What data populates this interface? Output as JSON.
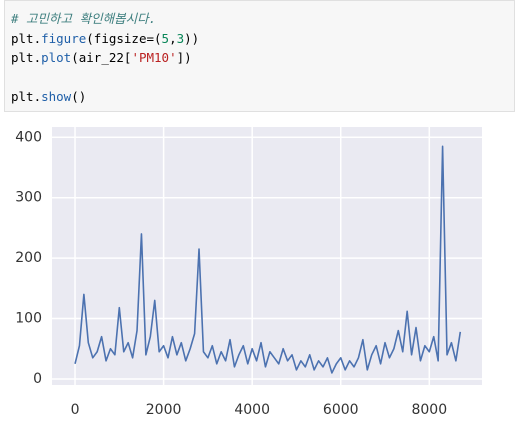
{
  "code": [
    [
      {
        "text": "# 고민하고 확인해봅시다.",
        "color": "#408080"
      }
    ],
    [
      {
        "text": "plt.",
        "color": "#000000"
      },
      {
        "text": "figure",
        "color": "#1f5fa8"
      },
      {
        "text": "(figsize=(",
        "color": "#000000"
      },
      {
        "text": "5",
        "color": "#098658"
      },
      {
        "text": ",",
        "color": "#000000"
      },
      {
        "text": "3",
        "color": "#098658"
      },
      {
        "text": "))",
        "color": "#000000"
      }
    ],
    [
      {
        "text": "plt.",
        "color": "#000000"
      },
      {
        "text": "plot",
        "color": "#1f5fa8"
      },
      {
        "text": "(air_22[",
        "color": "#000000"
      },
      {
        "text": "'PM10'",
        "color": "#ba2121"
      },
      {
        "text": "])",
        "color": "#000000"
      }
    ],
    [],
    [
      {
        "text": "plt.",
        "color": "#000000"
      },
      {
        "text": "show",
        "color": "#1f5fa8"
      },
      {
        "text": "()",
        "color": "#000000"
      }
    ]
  ],
  "chart_data": {
    "type": "line",
    "color": "#4c72b0",
    "grid": true,
    "x": [
      0,
      100,
      200,
      300,
      400,
      500,
      600,
      700,
      800,
      900,
      1000,
      1100,
      1200,
      1300,
      1400,
      1500,
      1600,
      1700,
      1800,
      1900,
      2000,
      2100,
      2200,
      2300,
      2400,
      2500,
      2600,
      2700,
      2800,
      2900,
      3000,
      3100,
      3200,
      3300,
      3400,
      3500,
      3600,
      3700,
      3800,
      3900,
      4000,
      4100,
      4200,
      4300,
      4400,
      4500,
      4600,
      4700,
      4800,
      4900,
      5000,
      5100,
      5200,
      5300,
      5400,
      5500,
      5600,
      5700,
      5800,
      5900,
      6000,
      6100,
      6200,
      6300,
      6400,
      6500,
      6600,
      6700,
      6800,
      6900,
      7000,
      7100,
      7200,
      7300,
      7400,
      7500,
      7600,
      7700,
      7800,
      7900,
      8000,
      8100,
      8200,
      8300,
      8400,
      8500,
      8600,
      8700
    ],
    "values": [
      25,
      55,
      140,
      60,
      35,
      45,
      70,
      30,
      50,
      40,
      118,
      45,
      60,
      35,
      80,
      240,
      40,
      70,
      130,
      45,
      55,
      35,
      70,
      40,
      60,
      30,
      50,
      75,
      215,
      45,
      35,
      55,
      25,
      45,
      30,
      65,
      20,
      40,
      55,
      25,
      50,
      30,
      60,
      20,
      45,
      35,
      25,
      50,
      30,
      40,
      15,
      30,
      20,
      40,
      15,
      30,
      20,
      35,
      10,
      25,
      35,
      15,
      30,
      20,
      35,
      65,
      15,
      40,
      55,
      25,
      60,
      35,
      50,
      80,
      45,
      112,
      40,
      85,
      30,
      55,
      45,
      70,
      30,
      385,
      40,
      60,
      30,
      78
    ],
    "xlim": [
      -520,
      9190
    ],
    "ylim": [
      -10,
      417
    ],
    "xticks": [
      0,
      2000,
      4000,
      6000,
      8000
    ],
    "yticks": [
      0,
      100,
      200,
      300,
      400
    ]
  }
}
